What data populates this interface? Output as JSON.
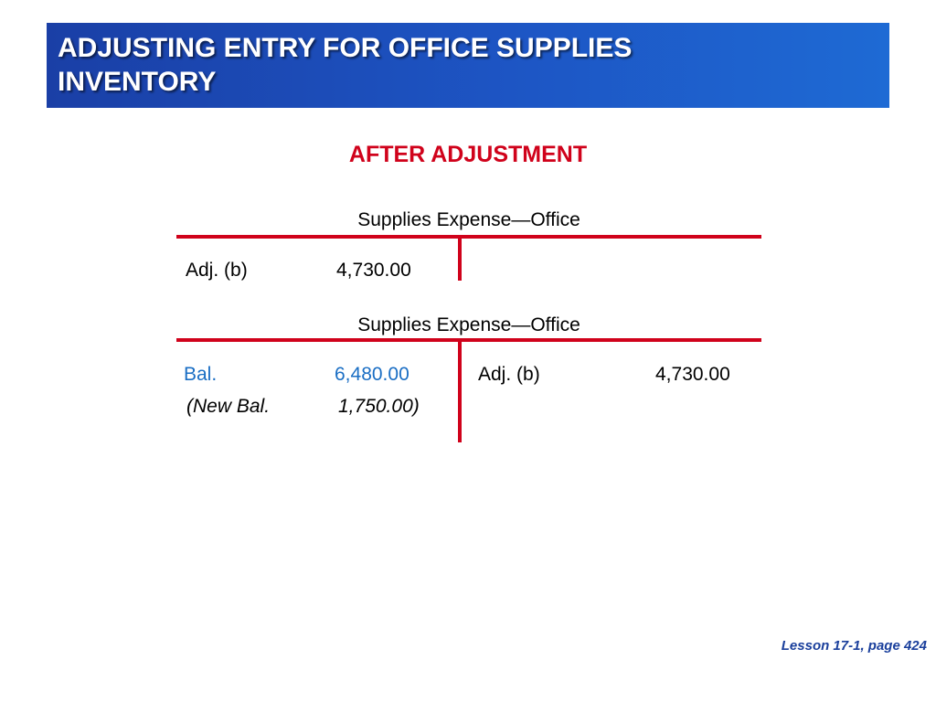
{
  "title_lines": [
    "ADJUSTING ENTRY FOR OFFICE SUPPLIES",
    "INVENTORY"
  ],
  "subtitle": "AFTER ADJUSTMENT",
  "accounts": [
    {
      "name": "Supplies Expense—Office",
      "debit": [
        {
          "label": "Adj. (b)",
          "amount": "4,730.00"
        }
      ],
      "credit": []
    },
    {
      "name": "Supplies Expense—Office",
      "debit": [
        {
          "label": "Bal.",
          "amount": "6,480.00"
        },
        {
          "label": "(New Bal.",
          "amount": "1,750.00)"
        }
      ],
      "credit": [
        {
          "label": "Adj. (b)",
          "amount": "4,730.00"
        }
      ]
    }
  ],
  "footer": "Lesson 17-1, page 424",
  "colors": {
    "title_bar": "#1d55c4",
    "accent_red": "#d0021b",
    "balance_blue": "#1a6ec4",
    "footer_blue": "#1a3f9c"
  }
}
